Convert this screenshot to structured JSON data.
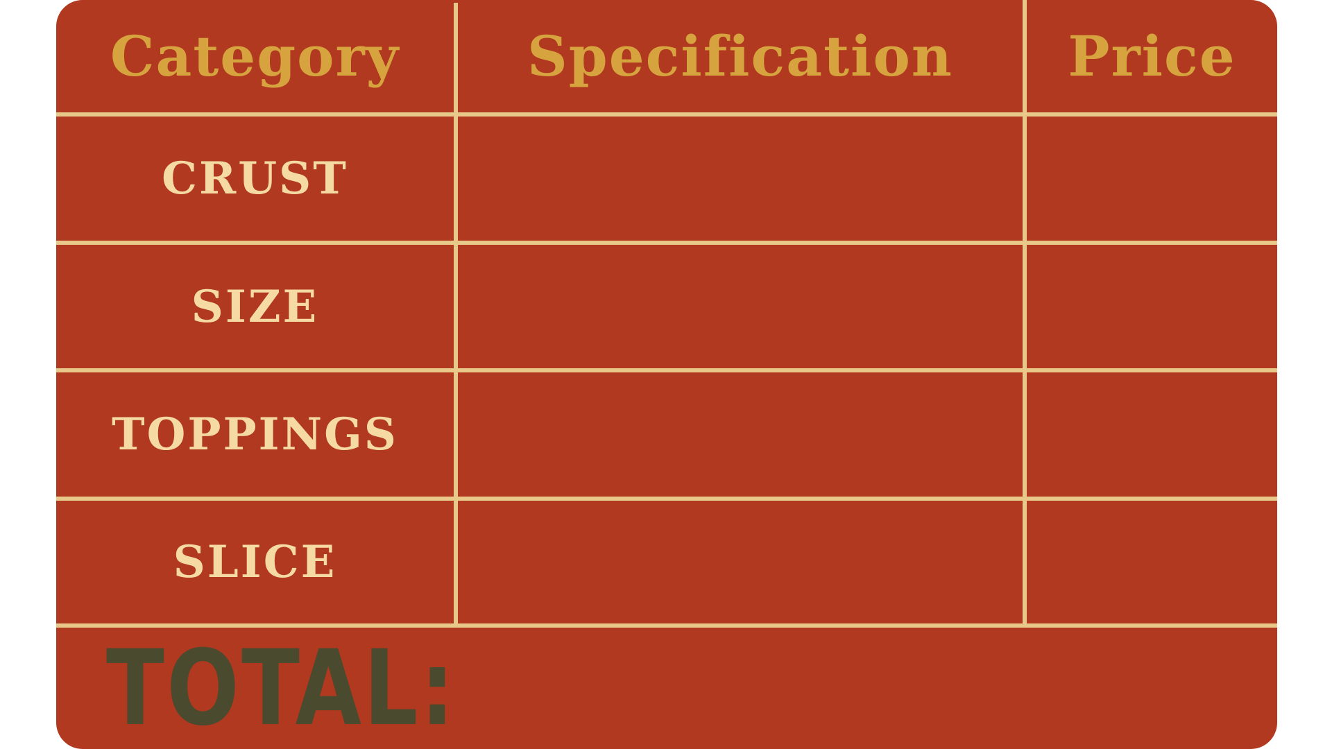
{
  "header": {
    "category": "Category",
    "specification": "Specification",
    "price": "Price"
  },
  "rows": [
    {
      "category": "CRUST",
      "specification": "",
      "price": ""
    },
    {
      "category": "SIZE",
      "specification": "",
      "price": ""
    },
    {
      "category": "TOPPINGS",
      "specification": "",
      "price": ""
    },
    {
      "category": "SLICE",
      "specification": "",
      "price": ""
    }
  ],
  "total_label": "TOTAL:",
  "colors": {
    "background": "#b1391f",
    "grid": "#e8c98a",
    "header_text": "#d6a33e",
    "category_text": "#f5dba3",
    "total_text": "#4a4a2e"
  }
}
